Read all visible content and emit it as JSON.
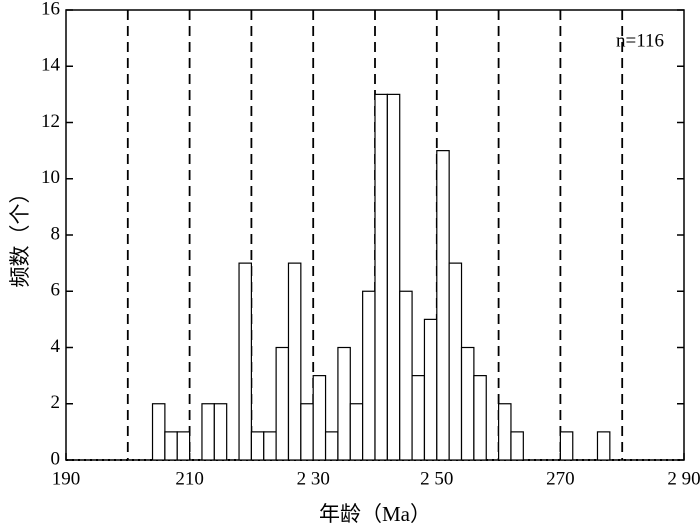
{
  "chart_data": {
    "type": "histogram",
    "bins": [
      204,
      206,
      208,
      210,
      212,
      214,
      216,
      218,
      220,
      222,
      224,
      226,
      228,
      230,
      232,
      234,
      236,
      238,
      240,
      242,
      244,
      246,
      248,
      250,
      252,
      254,
      256,
      258,
      260,
      262,
      264,
      266,
      268,
      270,
      272,
      274,
      276,
      278
    ],
    "values": [
      2,
      1,
      1,
      0,
      2,
      2,
      0,
      7,
      1,
      1,
      4,
      7,
      2,
      3,
      1,
      4,
      2,
      6,
      13,
      13,
      6,
      3,
      5,
      11,
      7,
      4,
      3,
      0,
      2,
      1,
      0,
      0,
      0,
      1,
      0,
      0,
      1
    ],
    "color": "#ffffff",
    "xlim": [
      190,
      290
    ],
    "xticks": [
      190,
      210,
      {
        "value": 230,
        "label": "2 30"
      },
      {
        "value": 250,
        "label": "2 50"
      },
      270,
      {
        "value": 290,
        "label": "2 90"
      }
    ],
    "ylim": [
      0,
      16
    ],
    "yticks": [
      0,
      2,
      4,
      6,
      8,
      10,
      12,
      14,
      16
    ],
    "vlines": [
      200,
      210,
      220,
      230,
      240,
      250,
      260,
      270,
      280
    ],
    "xlabel": "年龄（Ma）",
    "ylabel": "频数（个）",
    "annotation": "n=116"
  }
}
